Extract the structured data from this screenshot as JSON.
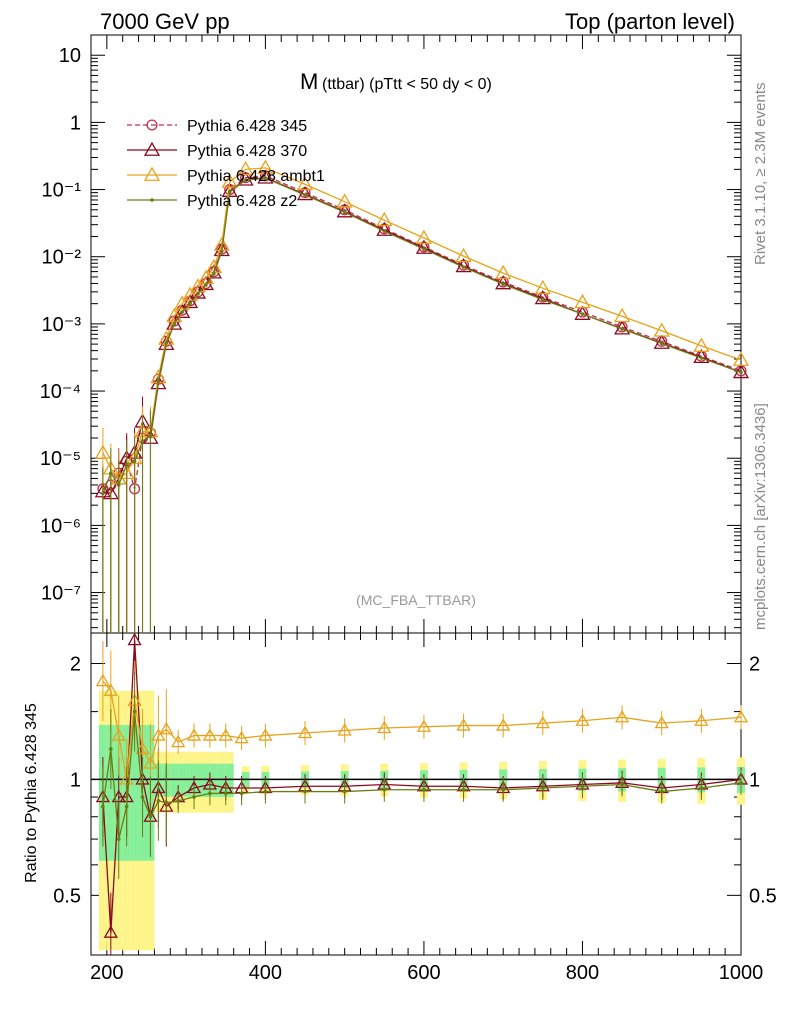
{
  "header": {
    "left": "7000 GeV pp",
    "right": "Top (parton level)"
  },
  "side_labels": {
    "rivet": "Rivet 3.1.10, ≥ 2.3M events",
    "mcplots": "mcplots.cern.ch [arXiv:1306.3436]"
  },
  "chart_data": [
    {
      "type": "line",
      "panel": "main",
      "title_main": "M",
      "title_sub": "(ttbar) (pTtt < 50 dy < 0)",
      "watermark": "(MC_FBA_TTBAR)",
      "y_scale": "log",
      "ylim": [
        2.5e-08,
        20
      ],
      "xlim": [
        180,
        1000
      ],
      "y_ticks": [
        {
          "value": 10,
          "label": "10"
        },
        {
          "value": 1,
          "label": "1"
        },
        {
          "value": 0.1,
          "label": "10⁻¹"
        },
        {
          "value": 0.01,
          "label": "10⁻²"
        },
        {
          "value": 0.001,
          "label": "10⁻³"
        },
        {
          "value": 0.0001,
          "label": "10⁻⁴"
        },
        {
          "value": 1e-05,
          "label": "10⁻⁵"
        },
        {
          "value": 1e-06,
          "label": "10⁻⁶"
        },
        {
          "value": 1e-07,
          "label": "10⁻⁷"
        }
      ],
      "legend_position": "top-left",
      "series": [
        {
          "name": "Pythia 6.428 345",
          "color": "#c0304a",
          "marker": "circle-open",
          "dash": true,
          "x": [
            195,
            205,
            215,
            225,
            235,
            245,
            255,
            265,
            275,
            285,
            295,
            305,
            315,
            325,
            335,
            345,
            355,
            375,
            400,
            450,
            500,
            550,
            600,
            650,
            700,
            750,
            800,
            850,
            900,
            950,
            1000
          ],
          "y": [
            3.5e-06,
            4e-06,
            6e-06,
            9e-06,
            3.5e-06,
            2e-05,
            2.4e-05,
            0.00015,
            0.00055,
            0.0011,
            0.0016,
            0.0022,
            0.003,
            0.004,
            0.006,
            0.013,
            0.1,
            0.15,
            0.16,
            0.09,
            0.05,
            0.026,
            0.014,
            0.0075,
            0.0042,
            0.0025,
            0.0015,
            0.0009,
            0.00055,
            0.00033,
            0.0002
          ]
        },
        {
          "name": "Pythia 6.428 370",
          "color": "#8b0a1e",
          "marker": "triangle-open",
          "dash": false,
          "x": [
            195,
            205,
            215,
            225,
            235,
            245,
            255,
            265,
            275,
            285,
            295,
            305,
            315,
            325,
            335,
            345,
            355,
            375,
            400,
            450,
            500,
            550,
            600,
            650,
            700,
            750,
            800,
            850,
            900,
            950,
            1000
          ],
          "y": [
            3.2e-06,
            3e-06,
            5e-06,
            1e-05,
            1.2e-05,
            3.5e-05,
            2e-05,
            0.00013,
            0.0005,
            0.001,
            0.0015,
            0.0021,
            0.0029,
            0.0039,
            0.0058,
            0.0125,
            0.095,
            0.14,
            0.15,
            0.085,
            0.047,
            0.025,
            0.0135,
            0.0072,
            0.004,
            0.0024,
            0.0014,
            0.00085,
            0.00052,
            0.00032,
            0.00019
          ]
        },
        {
          "name": "Pythia 6.428 ambt1",
          "color": "#e8a21a",
          "marker": "triangle-open",
          "dash": false,
          "x": [
            195,
            205,
            215,
            225,
            235,
            245,
            255,
            265,
            275,
            285,
            295,
            305,
            315,
            325,
            335,
            345,
            355,
            375,
            400,
            450,
            500,
            550,
            600,
            650,
            700,
            750,
            800,
            850,
            900,
            950,
            1000
          ],
          "y": [
            1.2e-05,
            7e-06,
            5e-06,
            6e-06,
            1e-05,
            2.5e-05,
            2.5e-05,
            0.00016,
            0.0006,
            0.0013,
            0.002,
            0.0027,
            0.0036,
            0.0048,
            0.007,
            0.015,
            0.13,
            0.2,
            0.21,
            0.12,
            0.066,
            0.035,
            0.019,
            0.0102,
            0.0057,
            0.0034,
            0.0021,
            0.0013,
            0.00079,
            0.00047,
            0.00029
          ]
        },
        {
          "name": "Pythia 6.428 z2",
          "color": "#6b7d12",
          "marker": "dot",
          "dash": false,
          "x": [
            195,
            205,
            215,
            225,
            235,
            245,
            255,
            265,
            275,
            285,
            295,
            305,
            315,
            325,
            335,
            345,
            355,
            375,
            400,
            450,
            500,
            550,
            600,
            650,
            700,
            750,
            800,
            850,
            900,
            950,
            1000
          ],
          "y": [
            3e-06,
            6e-06,
            4e-06,
            8e-06,
            9e-06,
            1.8e-05,
            2.2e-05,
            0.00014,
            0.00052,
            0.001,
            0.0015,
            0.002,
            0.0028,
            0.0038,
            0.0056,
            0.012,
            0.092,
            0.138,
            0.148,
            0.083,
            0.046,
            0.024,
            0.013,
            0.007,
            0.0039,
            0.0023,
            0.0014,
            0.00084,
            0.00051,
            0.00031,
            0.00019
          ]
        }
      ]
    },
    {
      "type": "line",
      "panel": "ratio",
      "ylabel": "Ratio to Pythia 6.428 345",
      "y_scale": "log",
      "ylim": [
        0.35,
        2.4
      ],
      "xlim": [
        180,
        1000
      ],
      "y_ticks": [
        {
          "value": 2,
          "label": "2"
        },
        {
          "value": 1,
          "label": "1"
        },
        {
          "value": 0.5,
          "label": "0.5"
        }
      ],
      "x_ticks": [
        {
          "value": 200,
          "label": "200"
        },
        {
          "value": 400,
          "label": "400"
        },
        {
          "value": 600,
          "label": "600"
        },
        {
          "value": 800,
          "label": "800"
        },
        {
          "value": 1000,
          "label": "1000"
        }
      ],
      "band_colors": {
        "inner": "#86ef9a",
        "outer": "#fdf48a"
      },
      "series": [
        {
          "name": "Pythia 6.428 370",
          "color": "#8b0a1e",
          "marker": "triangle-open",
          "x": [
            195,
            205,
            215,
            225,
            235,
            245,
            255,
            265,
            275,
            290,
            310,
            330,
            350,
            370,
            400,
            450,
            500,
            550,
            600,
            650,
            700,
            750,
            800,
            850,
            900,
            950,
            1000
          ],
          "y": [
            0.9,
            0.4,
            0.9,
            0.9,
            2.3,
            1.0,
            0.8,
            0.95,
            0.85,
            0.9,
            0.95,
            0.97,
            0.95,
            0.95,
            0.95,
            0.96,
            0.96,
            0.97,
            0.96,
            0.96,
            0.95,
            0.96,
            0.97,
            0.98,
            0.95,
            0.97,
            1.0
          ]
        },
        {
          "name": "Pythia 6.428 ambt1",
          "color": "#e8a21a",
          "marker": "triangle-open",
          "x": [
            195,
            205,
            215,
            225,
            235,
            245,
            255,
            265,
            275,
            290,
            310,
            330,
            350,
            370,
            400,
            450,
            500,
            550,
            600,
            650,
            700,
            750,
            800,
            850,
            900,
            950,
            1000
          ],
          "y": [
            1.8,
            1.7,
            1.3,
            1.0,
            1.6,
            1.2,
            1.1,
            1.3,
            1.35,
            1.25,
            1.3,
            1.3,
            1.3,
            1.28,
            1.3,
            1.32,
            1.34,
            1.36,
            1.37,
            1.38,
            1.38,
            1.4,
            1.42,
            1.45,
            1.4,
            1.42,
            1.45
          ]
        },
        {
          "name": "Pythia 6.428 z2",
          "color": "#6b7d12",
          "marker": "dot",
          "x": [
            195,
            205,
            215,
            225,
            235,
            245,
            255,
            265,
            275,
            290,
            310,
            330,
            350,
            370,
            400,
            450,
            500,
            550,
            600,
            650,
            700,
            750,
            800,
            850,
            900,
            950,
            1000
          ],
          "y": [
            0.85,
            1.2,
            0.7,
            0.85,
            1.5,
            0.9,
            0.8,
            0.88,
            0.87,
            0.88,
            0.9,
            0.92,
            0.92,
            0.92,
            0.93,
            0.93,
            0.93,
            0.94,
            0.94,
            0.94,
            0.94,
            0.95,
            0.96,
            0.97,
            0.93,
            0.95,
            0.98
          ]
        }
      ]
    }
  ]
}
